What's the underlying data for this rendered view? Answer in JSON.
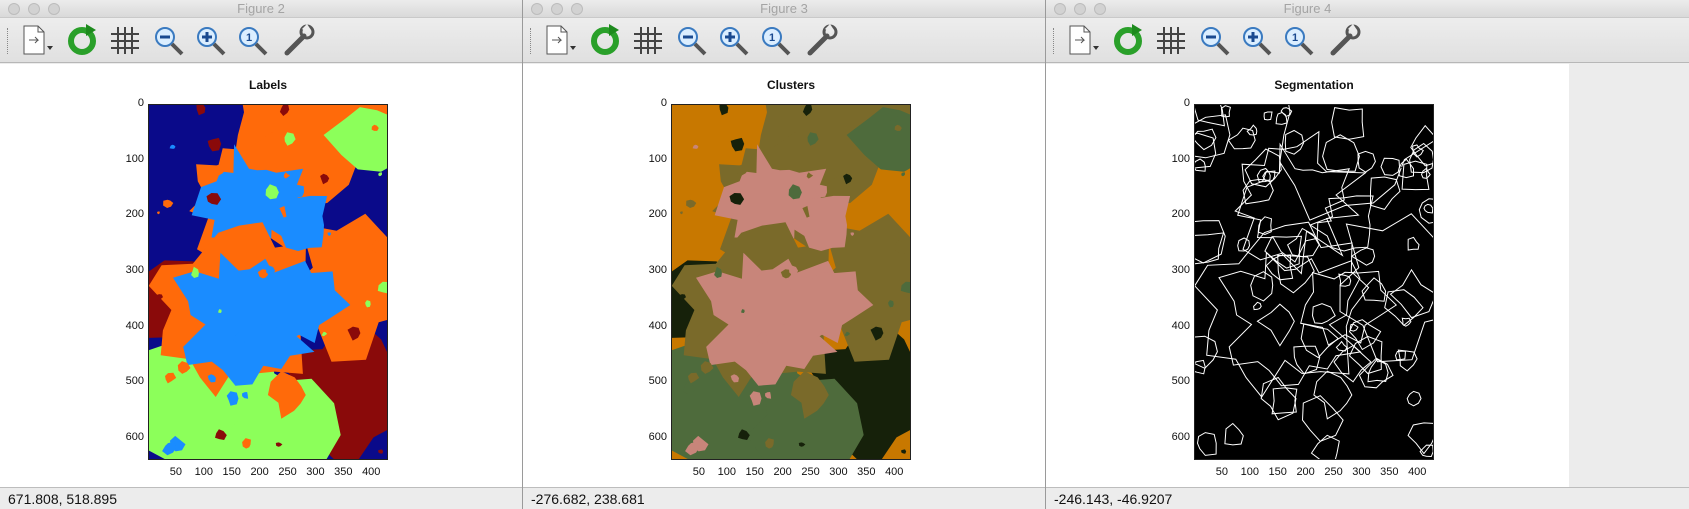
{
  "windows": [
    {
      "title": "Figure 2",
      "axes_title": "Labels",
      "status": "671.808,  518.895",
      "yticks": [
        "0",
        "100",
        "200",
        "300",
        "400",
        "500",
        "600"
      ],
      "xticks": [
        "50",
        "100",
        "150",
        "200",
        "250",
        "300",
        "350",
        "400"
      ],
      "palette": {
        "bg": "#0a0a8a",
        "a": "#ff6a0a",
        "b": "#1a8cff",
        "c": "#8a0a0a",
        "d": "#8cff5a"
      }
    },
    {
      "title": "Figure 3",
      "axes_title": "Clusters",
      "status": "-276.682,  238.681",
      "yticks": [
        "0",
        "100",
        "200",
        "300",
        "400",
        "500",
        "600"
      ],
      "xticks": [
        "50",
        "100",
        "150",
        "200",
        "250",
        "300",
        "350",
        "400"
      ],
      "palette": {
        "bg": "#c87800",
        "a": "#7a6a2a",
        "b": "#c8857a",
        "c": "#16210a",
        "d": "#4e6b3c"
      }
    },
    {
      "title": "Figure 4",
      "axes_title": "Segmentation",
      "status": "-246.143, -46.9207",
      "yticks": [
        "0",
        "100",
        "200",
        "300",
        "400",
        "500",
        "600"
      ],
      "xticks": [
        "50",
        "100",
        "150",
        "200",
        "250",
        "300",
        "350",
        "400"
      ],
      "palette": {
        "bg": "#000000",
        "a": "#ffffff",
        "b": "#ffffff",
        "c": "#000000",
        "d": "#000000"
      }
    }
  ],
  "toolbar": {
    "icons": [
      "new-figure-icon",
      "refresh-icon",
      "grid-icon",
      "zoom-out-icon",
      "zoom-in-icon",
      "zoom-reset-icon",
      "settings-wrench-icon"
    ]
  }
}
